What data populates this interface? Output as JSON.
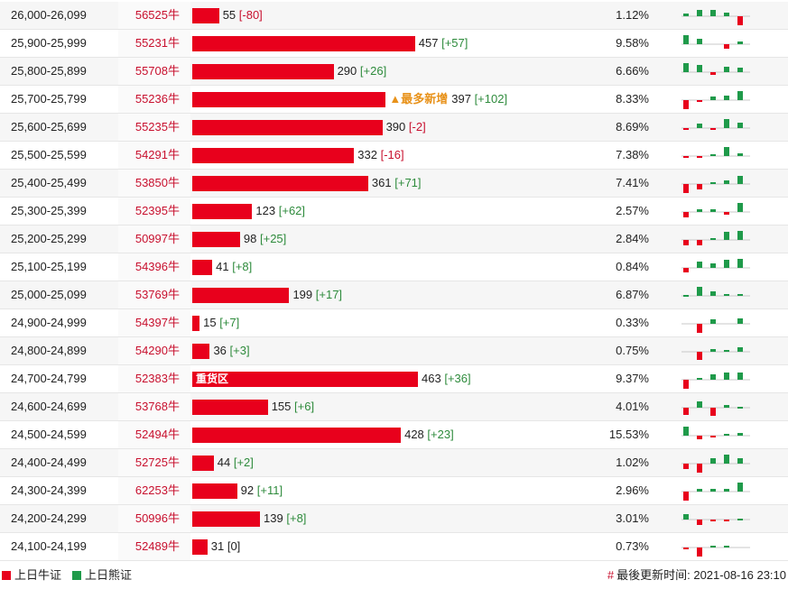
{
  "colors": {
    "bull": "#e8001c",
    "bear": "#1f9a4a",
    "accent": "#e8921a"
  },
  "chart_data": {
    "type": "bar",
    "x_max": 463,
    "rows": [
      {
        "range": "26,000-26,099",
        "code": "56525牛",
        "value": 55,
        "change": "[-80]",
        "pct": "1.12%",
        "spark": [
          0.3,
          0.7,
          0.7,
          0.4,
          -1.0
        ]
      },
      {
        "range": "25,900-25,999",
        "code": "55231牛",
        "value": 457,
        "change": "[+57]",
        "pct": "9.58%",
        "spark": [
          1.0,
          0.6,
          0,
          -0.5,
          0.3
        ]
      },
      {
        "range": "25,800-25,899",
        "code": "55708牛",
        "value": 290,
        "change": "[+26]",
        "pct": "6.66%",
        "spark": [
          1.0,
          0.8,
          -0.3,
          0.6,
          0.5
        ]
      },
      {
        "range": "25,700-25,799",
        "code": "55236牛",
        "tag": "▲最多新增",
        "value": 397,
        "change": "[+102]",
        "pct": "8.33%",
        "spark": [
          -1.0,
          -0.2,
          0.4,
          0.5,
          1.0
        ]
      },
      {
        "range": "25,600-25,699",
        "code": "55235牛",
        "value": 390,
        "change": "[-2]",
        "pct": "8.69%",
        "spark": [
          -0.2,
          0.5,
          -0.1,
          1.0,
          0.6
        ]
      },
      {
        "range": "25,500-25,599",
        "code": "54291牛",
        "value": 332,
        "change": "[-16]",
        "pct": "7.38%",
        "spark": [
          -0.1,
          -0.1,
          0.2,
          1.0,
          0.3
        ]
      },
      {
        "range": "25,400-25,499",
        "code": "53850牛",
        "value": 361,
        "change": "[+71]",
        "pct": "7.41%",
        "spark": [
          -1.0,
          -0.6,
          0.2,
          0.4,
          0.9
        ]
      },
      {
        "range": "25,300-25,399",
        "code": "52395牛",
        "value": 123,
        "change": "[+62]",
        "pct": "2.57%",
        "spark": [
          -0.6,
          0.3,
          0.3,
          -0.3,
          1.0
        ]
      },
      {
        "range": "25,200-25,299",
        "code": "50997牛",
        "value": 98,
        "change": "[+25]",
        "pct": "2.84%",
        "spark": [
          -0.6,
          -0.6,
          0.2,
          0.9,
          1.0
        ]
      },
      {
        "range": "25,100-25,199",
        "code": "54396牛",
        "value": 41,
        "change": "[+8]",
        "pct": "0.84%",
        "spark": [
          -0.5,
          0.7,
          0.5,
          0.9,
          1.0
        ]
      },
      {
        "range": "25,000-25,099",
        "code": "53769牛",
        "value": 199,
        "change": "[+17]",
        "pct": "6.87%",
        "spark": [
          0.1,
          1.0,
          0.5,
          0.2,
          0.2
        ]
      },
      {
        "range": "24,900-24,999",
        "code": "54397牛",
        "value": 15,
        "change": "[+7]",
        "pct": "0.33%",
        "spark": [
          0,
          -1.0,
          0.5,
          0,
          0.6
        ]
      },
      {
        "range": "24,800-24,899",
        "code": "54290牛",
        "value": 36,
        "change": "[+3]",
        "pct": "0.75%",
        "spark": [
          0,
          -0.9,
          0.3,
          0.2,
          0.5
        ]
      },
      {
        "range": "24,700-24,799",
        "code": "52383牛",
        "tag": "重货区",
        "value": 463,
        "change": "[+36]",
        "pct": "9.37%",
        "spark": [
          -1.0,
          0.2,
          0.6,
          0.8,
          0.8
        ]
      },
      {
        "range": "24,600-24,699",
        "code": "53768牛",
        "value": 155,
        "change": "[+6]",
        "pct": "4.01%",
        "spark": [
          -0.8,
          0.7,
          -0.9,
          0.3,
          0.1
        ]
      },
      {
        "range": "24,500-24,599",
        "code": "52494牛",
        "value": 428,
        "change": "[+23]",
        "pct": "15.53%",
        "spark": [
          1.0,
          -0.4,
          -0.1,
          0.2,
          0.3
        ]
      },
      {
        "range": "24,400-24,499",
        "code": "52725牛",
        "value": 44,
        "change": "[+2]",
        "pct": "1.02%",
        "spark": [
          -0.6,
          -1.0,
          0.6,
          1.0,
          0.6
        ]
      },
      {
        "range": "24,300-24,399",
        "code": "62253牛",
        "value": 92,
        "change": "[+11]",
        "pct": "2.96%",
        "spark": [
          -1.0,
          0.3,
          0.3,
          0.3,
          1.0
        ]
      },
      {
        "range": "24,200-24,299",
        "code": "50996牛",
        "value": 139,
        "change": "[+8]",
        "pct": "3.01%",
        "spark": [
          0.6,
          -0.6,
          -0.2,
          -0.1,
          0.1
        ]
      },
      {
        "range": "24,100-24,199",
        "code": "52489牛",
        "value": 31,
        "change": "[0]",
        "pct": "0.73%",
        "spark": [
          -0.2,
          -1.0,
          0.2,
          0.2,
          0
        ]
      }
    ]
  },
  "legend": {
    "bull": "上日牛证",
    "bear": "上日熊证"
  },
  "footer": {
    "mark": "#",
    "updated": "最後更新时间: 2021-08-16 23:10"
  }
}
